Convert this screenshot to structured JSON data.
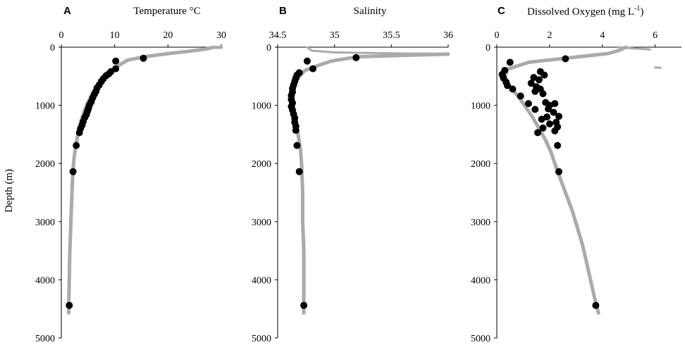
{
  "figure": {
    "y_axis_label": "Depth (m)",
    "band_color": "#aaaaaa",
    "point_color": "#000000"
  },
  "chart_data": [
    {
      "type": "scatter",
      "panel_letter": "A",
      "title": "Temperature °C",
      "xlim": [
        0,
        30
      ],
      "ylim": [
        0,
        5000
      ],
      "y_inverted": true,
      "x_axis_position": "top",
      "xticks": [
        "0",
        "10",
        "20",
        "30"
      ],
      "yticks": [
        "0",
        "1000",
        "2000",
        "3000",
        "4000",
        "5000"
      ],
      "grid": false,
      "series": [
        {
          "kind": "band",
          "points": [
            {
              "x": 30,
              "y": 0
            },
            {
              "x": 28.6,
              "y": 0
            },
            {
              "x": 27.5,
              "y": 25
            },
            {
              "x": 24,
              "y": 70
            },
            {
              "x": 20,
              "y": 110
            },
            {
              "x": 16,
              "y": 160
            },
            {
              "x": 12.5,
              "y": 220
            },
            {
              "x": 11,
              "y": 300
            },
            {
              "x": 9.2,
              "y": 430
            },
            {
              "x": 7.8,
              "y": 530
            },
            {
              "x": 6.8,
              "y": 650
            },
            {
              "x": 5.8,
              "y": 800
            },
            {
              "x": 5,
              "y": 950
            },
            {
              "x": 4.3,
              "y": 1100
            },
            {
              "x": 3.6,
              "y": 1300
            },
            {
              "x": 3.1,
              "y": 1500
            },
            {
              "x": 2.7,
              "y": 1700
            },
            {
              "x": 2.4,
              "y": 1900
            },
            {
              "x": 2.2,
              "y": 2100
            },
            {
              "x": 2,
              "y": 2500
            },
            {
              "x": 1.8,
              "y": 3000
            },
            {
              "x": 1.6,
              "y": 3500
            },
            {
              "x": 1.5,
              "y": 4000
            },
            {
              "x": 1.4,
              "y": 4400
            },
            {
              "x": 1.4,
              "y": 4570
            }
          ]
        },
        {
          "kind": "samples",
          "points": [
            {
              "x": 15.4,
              "y": 190
            },
            {
              "x": 10.2,
              "y": 240
            },
            {
              "x": 10.2,
              "y": 370
            },
            {
              "x": 9.3,
              "y": 420
            },
            {
              "x": 8.9,
              "y": 460
            },
            {
              "x": 8.4,
              "y": 490
            },
            {
              "x": 7.9,
              "y": 540
            },
            {
              "x": 7.5,
              "y": 590
            },
            {
              "x": 7.1,
              "y": 650
            },
            {
              "x": 6.7,
              "y": 700
            },
            {
              "x": 6.5,
              "y": 760
            },
            {
              "x": 6.2,
              "y": 810
            },
            {
              "x": 5.9,
              "y": 870
            },
            {
              "x": 5.6,
              "y": 940
            },
            {
              "x": 5.3,
              "y": 990
            },
            {
              "x": 5.1,
              "y": 1050
            },
            {
              "x": 4.9,
              "y": 1100
            },
            {
              "x": 4.7,
              "y": 1160
            },
            {
              "x": 4.4,
              "y": 1210
            },
            {
              "x": 4.1,
              "y": 1280
            },
            {
              "x": 3.9,
              "y": 1340
            },
            {
              "x": 3.6,
              "y": 1400
            },
            {
              "x": 3.4,
              "y": 1470
            },
            {
              "x": 2.8,
              "y": 1690
            },
            {
              "x": 2.2,
              "y": 2140
            },
            {
              "x": 1.5,
              "y": 4440
            }
          ]
        }
      ]
    },
    {
      "type": "scatter",
      "panel_letter": "B",
      "title": "Salinity",
      "xlim": [
        34.5,
        36
      ],
      "ylim": [
        0,
        5000
      ],
      "y_inverted": true,
      "x_axis_position": "top",
      "xticks": [
        "34.5",
        "35",
        "35.5",
        "36"
      ],
      "yticks": [
        "0",
        "1000",
        "2000",
        "3000",
        "4000",
        "5000"
      ],
      "grid": false,
      "series": [
        {
          "kind": "band",
          "points": [
            {
              "x": 36,
              "y": 120
            },
            {
              "x": 35.6,
              "y": 140
            },
            {
              "x": 35.2,
              "y": 165
            },
            {
              "x": 34.97,
              "y": 240
            },
            {
              "x": 34.85,
              "y": 320
            },
            {
              "x": 34.74,
              "y": 400
            },
            {
              "x": 34.69,
              "y": 500
            },
            {
              "x": 34.66,
              "y": 600
            },
            {
              "x": 34.64,
              "y": 750
            },
            {
              "x": 34.63,
              "y": 900
            },
            {
              "x": 34.64,
              "y": 1050
            },
            {
              "x": 34.66,
              "y": 1250
            },
            {
              "x": 34.68,
              "y": 1500
            },
            {
              "x": 34.7,
              "y": 1750
            },
            {
              "x": 34.71,
              "y": 2000
            },
            {
              "x": 34.72,
              "y": 2500
            },
            {
              "x": 34.72,
              "y": 3000
            },
            {
              "x": 34.73,
              "y": 3500
            },
            {
              "x": 34.73,
              "y": 4000
            },
            {
              "x": 34.73,
              "y": 4570
            }
          ]
        },
        {
          "kind": "band-surface",
          "points": [
            {
              "x": 34.76,
              "y": 0
            },
            {
              "x": 34.8,
              "y": 60
            },
            {
              "x": 35.0,
              "y": 90
            },
            {
              "x": 35.3,
              "y": 100
            },
            {
              "x": 35.7,
              "y": 110
            },
            {
              "x": 36,
              "y": 110
            }
          ]
        },
        {
          "kind": "samples",
          "points": [
            {
              "x": 35.19,
              "y": 180
            },
            {
              "x": 34.76,
              "y": 240
            },
            {
              "x": 34.81,
              "y": 370
            },
            {
              "x": 34.69,
              "y": 440
            },
            {
              "x": 34.67,
              "y": 480
            },
            {
              "x": 34.66,
              "y": 530
            },
            {
              "x": 34.65,
              "y": 590
            },
            {
              "x": 34.64,
              "y": 650
            },
            {
              "x": 34.63,
              "y": 710
            },
            {
              "x": 34.63,
              "y": 770
            },
            {
              "x": 34.62,
              "y": 830
            },
            {
              "x": 34.62,
              "y": 900
            },
            {
              "x": 34.63,
              "y": 960
            },
            {
              "x": 34.62,
              "y": 1020
            },
            {
              "x": 34.63,
              "y": 1080
            },
            {
              "x": 34.64,
              "y": 1150
            },
            {
              "x": 34.65,
              "y": 1220
            },
            {
              "x": 34.65,
              "y": 1290
            },
            {
              "x": 34.66,
              "y": 1360
            },
            {
              "x": 34.66,
              "y": 1430
            },
            {
              "x": 34.67,
              "y": 1690
            },
            {
              "x": 34.69,
              "y": 2140
            },
            {
              "x": 34.73,
              "y": 4440
            }
          ]
        }
      ]
    },
    {
      "type": "scatter",
      "panel_letter": "C",
      "title": "Dissolved Oxygen (mg L",
      "title_superscript": "-1",
      "title_suffix": ")",
      "xlim": [
        0,
        7
      ],
      "ylim": [
        0,
        5000
      ],
      "y_inverted": true,
      "x_axis_position": "top",
      "xticks": [
        "0",
        "2",
        "4",
        "6"
      ],
      "yticks": [
        "0",
        "1000",
        "2000",
        "3000",
        "4000",
        "5000"
      ],
      "grid": false,
      "series": [
        {
          "kind": "band",
          "points": [
            {
              "x": 4.9,
              "y": 0
            },
            {
              "x": 4.6,
              "y": 60
            },
            {
              "x": 4.2,
              "y": 110
            },
            {
              "x": 3.0,
              "y": 170
            },
            {
              "x": 1.2,
              "y": 260
            },
            {
              "x": 0.4,
              "y": 380
            },
            {
              "x": 0.3,
              "y": 520
            },
            {
              "x": 0.5,
              "y": 680
            },
            {
              "x": 0.8,
              "y": 840
            },
            {
              "x": 1.05,
              "y": 1000
            },
            {
              "x": 1.35,
              "y": 1200
            },
            {
              "x": 1.6,
              "y": 1400
            },
            {
              "x": 1.85,
              "y": 1600
            },
            {
              "x": 2.05,
              "y": 1800
            },
            {
              "x": 2.2,
              "y": 2000
            },
            {
              "x": 2.4,
              "y": 2250
            },
            {
              "x": 2.6,
              "y": 2500
            },
            {
              "x": 2.85,
              "y": 2800
            },
            {
              "x": 3.05,
              "y": 3100
            },
            {
              "x": 3.25,
              "y": 3400
            },
            {
              "x": 3.4,
              "y": 3700
            },
            {
              "x": 3.55,
              "y": 4000
            },
            {
              "x": 3.7,
              "y": 4300
            },
            {
              "x": 3.85,
              "y": 4570
            }
          ]
        },
        {
          "kind": "band-surface",
          "points": [
            {
              "x": 4.6,
              "y": 0
            },
            {
              "x": 5.2,
              "y": 20
            },
            {
              "x": 5.8,
              "y": 40
            }
          ]
        },
        {
          "kind": "band-surface",
          "points": [
            {
              "x": 6.0,
              "y": 350
            },
            {
              "x": 6.2,
              "y": 355
            }
          ]
        },
        {
          "kind": "samples",
          "points": [
            {
              "x": 2.6,
              "y": 200
            },
            {
              "x": 0.5,
              "y": 260
            },
            {
              "x": 0.3,
              "y": 400
            },
            {
              "x": 0.2,
              "y": 470
            },
            {
              "x": 0.25,
              "y": 530
            },
            {
              "x": 0.35,
              "y": 600
            },
            {
              "x": 0.4,
              "y": 660
            },
            {
              "x": 0.6,
              "y": 720
            },
            {
              "x": 0.9,
              "y": 840
            },
            {
              "x": 1.2,
              "y": 970
            },
            {
              "x": 1.45,
              "y": 1070
            },
            {
              "x": 1.7,
              "y": 1240
            },
            {
              "x": 1.75,
              "y": 1390
            },
            {
              "x": 1.55,
              "y": 1470
            },
            {
              "x": 1.65,
              "y": 420
            },
            {
              "x": 1.8,
              "y": 480
            },
            {
              "x": 1.4,
              "y": 520
            },
            {
              "x": 1.6,
              "y": 560
            },
            {
              "x": 1.3,
              "y": 620
            },
            {
              "x": 1.5,
              "y": 680
            },
            {
              "x": 1.45,
              "y": 760
            },
            {
              "x": 1.65,
              "y": 720
            },
            {
              "x": 1.75,
              "y": 800
            },
            {
              "x": 1.85,
              "y": 950
            },
            {
              "x": 2.0,
              "y": 1000
            },
            {
              "x": 2.2,
              "y": 970
            },
            {
              "x": 1.95,
              "y": 1060
            },
            {
              "x": 2.15,
              "y": 1120
            },
            {
              "x": 1.9,
              "y": 1200
            },
            {
              "x": 2.35,
              "y": 1190
            },
            {
              "x": 2.25,
              "y": 1290
            },
            {
              "x": 2.0,
              "y": 1320
            },
            {
              "x": 2.3,
              "y": 1370
            },
            {
              "x": 2.2,
              "y": 1440
            },
            {
              "x": 2.3,
              "y": 1690
            },
            {
              "x": 2.35,
              "y": 2140
            },
            {
              "x": 3.75,
              "y": 4440
            }
          ]
        }
      ]
    }
  ]
}
